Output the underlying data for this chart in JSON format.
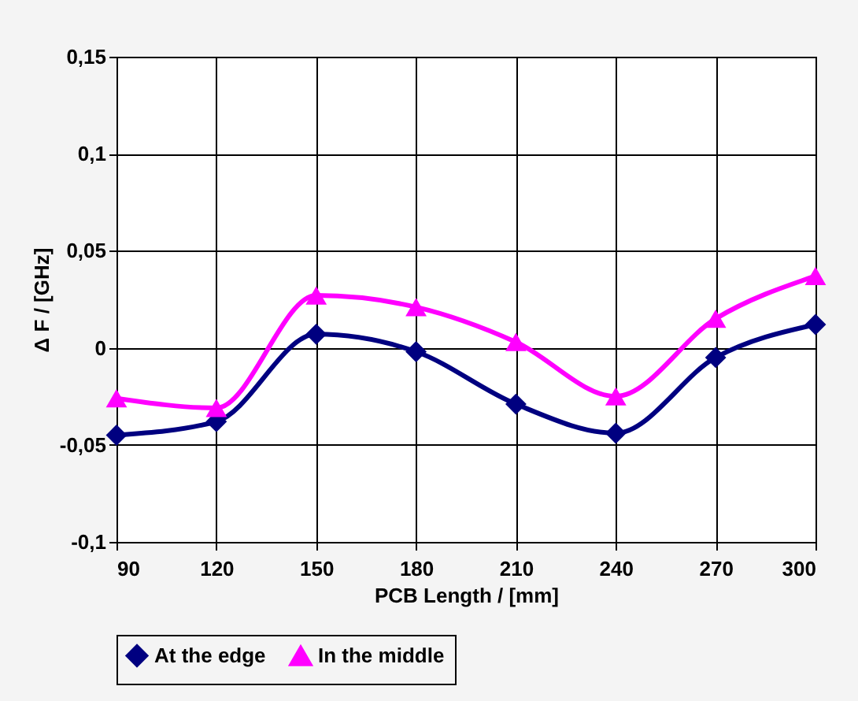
{
  "chart_data": {
    "type": "line",
    "xlabel": "PCB Length / [mm]",
    "ylabel": "Δ F / [GHz]",
    "x": [
      90,
      120,
      150,
      180,
      210,
      240,
      270,
      300
    ],
    "xlim": [
      90,
      300
    ],
    "xticks": [
      90,
      120,
      150,
      180,
      210,
      240,
      270,
      300
    ],
    "ylim": [
      -0.1,
      0.15
    ],
    "yticks": [
      {
        "value": -0.1,
        "label": "-0,1"
      },
      {
        "value": -0.05,
        "label": "-0,05"
      },
      {
        "value": 0,
        "label": "0"
      },
      {
        "value": 0.05,
        "label": "0,05"
      },
      {
        "value": 0.1,
        "label": "0,1"
      },
      {
        "value": 0.15,
        "label": "0,15"
      }
    ],
    "grid": true,
    "legend": "bottom",
    "series": [
      {
        "name": "At the edge",
        "color": "#000080",
        "marker": "diamond",
        "values": [
          -0.045,
          -0.038,
          0.007,
          -0.002,
          -0.029,
          -0.044,
          -0.005,
          0.012
        ]
      },
      {
        "name": "In the middle",
        "color": "#ff00ff",
        "marker": "triangle",
        "values": [
          -0.026,
          -0.031,
          0.027,
          0.021,
          0.003,
          -0.025,
          0.015,
          0.037
        ]
      }
    ]
  }
}
